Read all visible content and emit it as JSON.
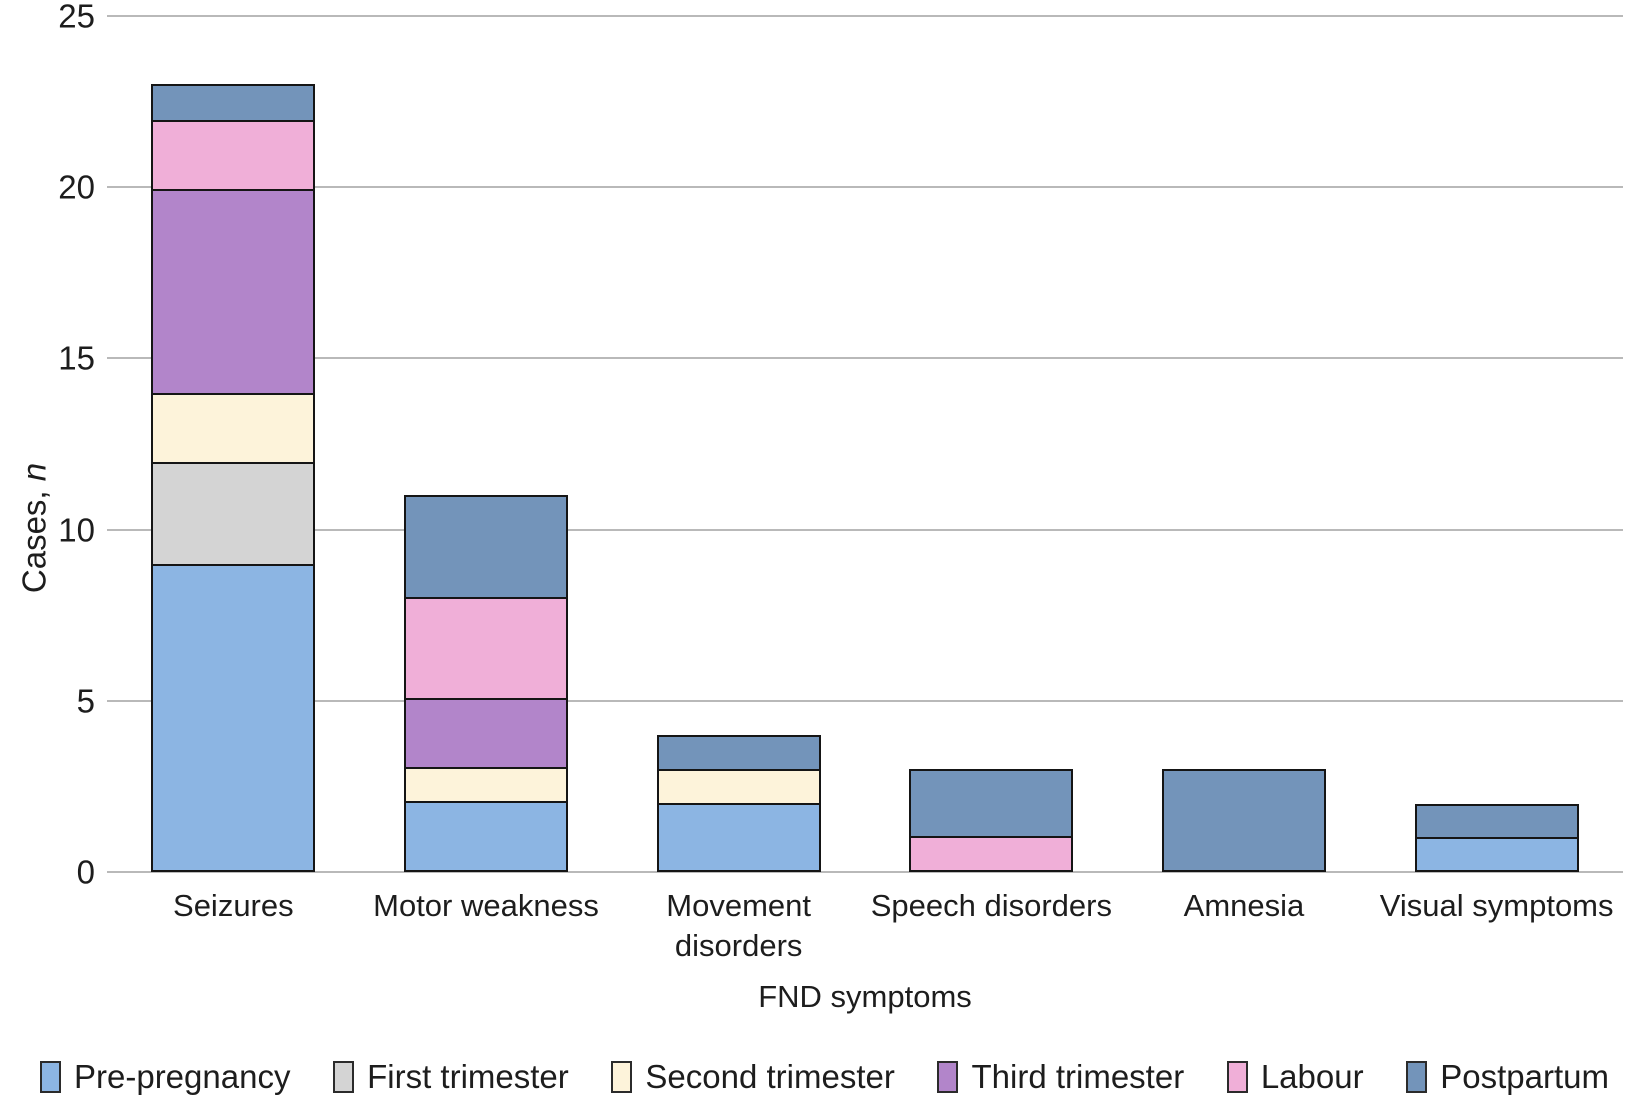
{
  "chart_data": {
    "type": "bar",
    "stacked": true,
    "xlabel": "FND symptoms",
    "ylabel": "Cases, n",
    "ylabel_parts": [
      "Cases, ",
      "n"
    ],
    "ylim": [
      0,
      25
    ],
    "yticks": [
      0,
      5,
      10,
      15,
      20,
      25
    ],
    "grid": "horizontal",
    "legend_position": "bottom",
    "categories": [
      "Seizures",
      "Motor weakness",
      "Movement\ndisorders",
      "Speech disorders",
      "Amnesia",
      "Visual symptoms"
    ],
    "series": [
      {
        "name": "Pre-pregnancy",
        "color": "#8CB5E3",
        "values": [
          9,
          2,
          2,
          0,
          0,
          1
        ]
      },
      {
        "name": "First trimester",
        "color": "#D4D4D4",
        "values": [
          3,
          0,
          0,
          0,
          0,
          0
        ]
      },
      {
        "name": "Second trimester",
        "color": "#FDF3DA",
        "values": [
          2,
          1,
          1,
          0,
          0,
          0
        ]
      },
      {
        "name": "Third trimester",
        "color": "#B285CA",
        "values": [
          6,
          2,
          0,
          0,
          0,
          0
        ]
      },
      {
        "name": "Labour",
        "color": "#F0AFD8",
        "values": [
          2,
          3,
          0,
          1,
          0,
          0
        ]
      },
      {
        "name": "Postpartum",
        "color": "#7394BA",
        "values": [
          1,
          3,
          1,
          2,
          3,
          1
        ]
      }
    ],
    "totals": [
      23,
      11,
      4,
      3,
      3,
      2
    ],
    "colors": {
      "grid": "#b9b9b9",
      "bar_outline": "#151515",
      "text": "#1d1d1d"
    }
  }
}
